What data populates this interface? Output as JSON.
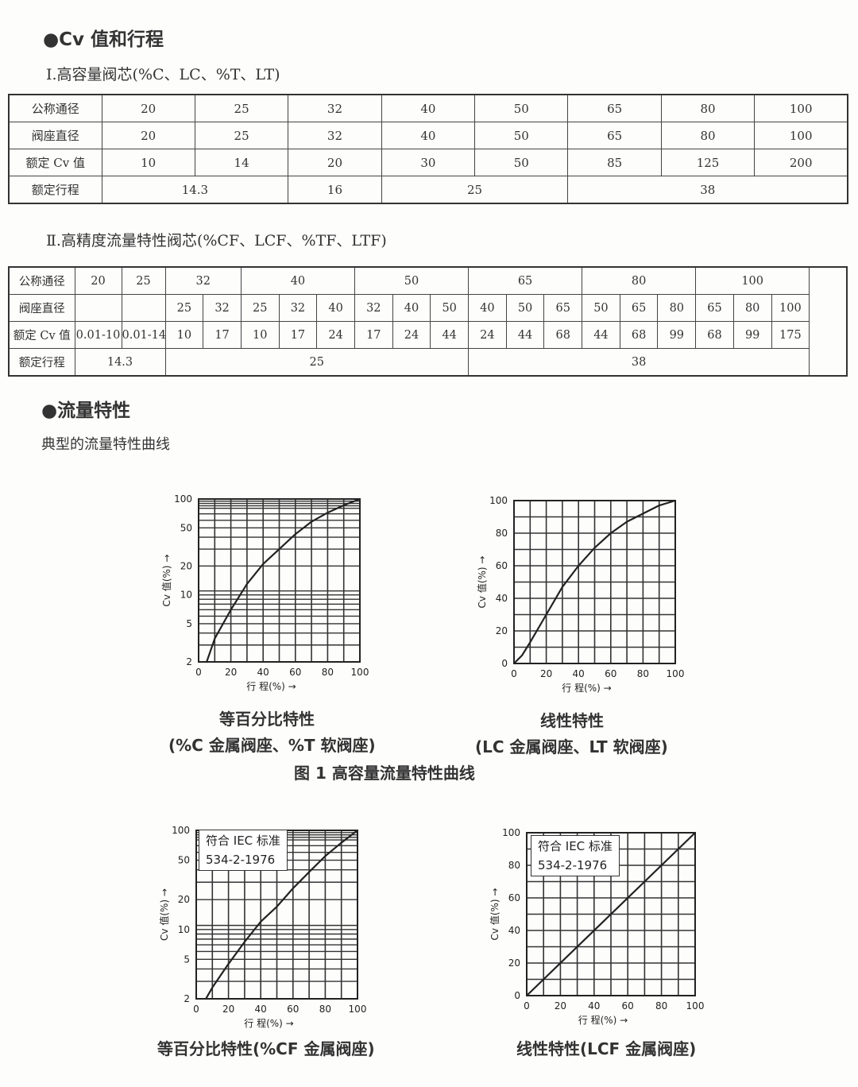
{
  "section1": {
    "title": "●Cv 值和行程"
  },
  "table1": {
    "title": "Ⅰ.高容量阀芯(%C、LC、%T、LT)",
    "rows": [
      {
        "label": "公称通径",
        "cells": [
          "20",
          "25",
          "32",
          "40",
          "50",
          "65",
          "80",
          "100"
        ]
      },
      {
        "label": "阀座直径",
        "cells": [
          "20",
          "25",
          "32",
          "40",
          "50",
          "65",
          "80",
          "100"
        ]
      },
      {
        "label": "额定 Cv 值",
        "cells": [
          "10",
          "14",
          "20",
          "30",
          "50",
          "85",
          "125",
          "200"
        ]
      },
      {
        "label": "额定行程",
        "cells": [
          "14.3",
          "16",
          "25",
          "38"
        ]
      }
    ]
  },
  "table2": {
    "title": "Ⅱ.高精度流量特性阀芯(%CF、LCF、%TF、LTF)",
    "rows": [
      {
        "label": "公称通径",
        "cells": [
          "20",
          "25",
          "32",
          "40",
          "50",
          "65",
          "80",
          "100"
        ]
      },
      {
        "label": "阀座直径",
        "cells": [
          "",
          "",
          "25",
          "32",
          "25",
          "32",
          "40",
          "32",
          "40",
          "50",
          "40",
          "50",
          "65",
          "50",
          "65",
          "80",
          "65",
          "80",
          "100"
        ]
      },
      {
        "label": "额定 Cv 值",
        "cells": [
          "0.01-10",
          "0.01-14",
          "10",
          "17",
          "10",
          "17",
          "24",
          "17",
          "24",
          "44",
          "24",
          "44",
          "68",
          "44",
          "68",
          "99",
          "68",
          "99",
          "175"
        ]
      },
      {
        "label": "额定行程",
        "cells": [
          "14.3",
          "25",
          "38"
        ]
      }
    ]
  },
  "section2": {
    "title": "●流量特性",
    "subtitle": "典型的流量特性曲线"
  },
  "figure1": {
    "caption": "图 1  高容量流量特性曲线"
  },
  "captions": {
    "c1a": "等百分比特性",
    "c1b": "(%C 金属阀座、%T 软阀座)",
    "c2a": "线性特性",
    "c2b": "(LC 金属阀座、LT 软阀座)",
    "c3": "等百分比特性(%CF 金属阀座)",
    "c4": "线性特性(LCF 金属阀座)"
  },
  "chart_data": [
    {
      "type": "line",
      "title": "等百分比特性",
      "xlabel": "行 程(%) →",
      "ylabel": "Cv 值(%) →",
      "yscale": "log",
      "xlim": [
        0,
        100
      ],
      "ylim": [
        2,
        100
      ],
      "xticks": [
        "0",
        "20",
        "40",
        "60",
        "80",
        "100"
      ],
      "yticks": [
        "2",
        "5",
        "10",
        "20",
        "50",
        "100"
      ],
      "grid": true,
      "x": [
        5,
        10,
        20,
        30,
        40,
        50,
        60,
        70,
        80,
        90,
        100
      ],
      "y": [
        2,
        3.5,
        7,
        13,
        21,
        30,
        43,
        58,
        72,
        86,
        100
      ]
    },
    {
      "type": "line",
      "title": "线性特性",
      "xlabel": "行 程(%) →",
      "ylabel": "Cv 值(%) →",
      "yscale": "linear",
      "xlim": [
        0,
        100
      ],
      "ylim": [
        0,
        100
      ],
      "xticks": [
        "0",
        "20",
        "40",
        "60",
        "80",
        "100"
      ],
      "yticks": [
        "0",
        "20",
        "40",
        "60",
        "80",
        "100"
      ],
      "grid": true,
      "x": [
        0,
        5,
        10,
        20,
        30,
        40,
        50,
        60,
        70,
        80,
        90,
        100
      ],
      "y": [
        0,
        5,
        13,
        30,
        47,
        60,
        71,
        80,
        87,
        92,
        97,
        100
      ]
    },
    {
      "type": "line",
      "title": "等百分比特性(%CF 金属阀座)",
      "annotation": [
        "符合 IEC 标准",
        "534-2-1976"
      ],
      "xlabel": "行 程(%) →",
      "ylabel": "Cv 值(%) →",
      "yscale": "log",
      "xlim": [
        0,
        100
      ],
      "ylim": [
        2,
        100
      ],
      "xticks": [
        "0",
        "20",
        "40",
        "60",
        "80",
        "100"
      ],
      "yticks": [
        "2",
        "5",
        "10",
        "20",
        "50",
        "100"
      ],
      "grid": true,
      "x": [
        6,
        10,
        20,
        30,
        40,
        50,
        60,
        70,
        80,
        90,
        100
      ],
      "y": [
        2,
        2.6,
        4.5,
        7.5,
        12,
        17,
        26,
        38,
        55,
        75,
        100
      ]
    },
    {
      "type": "line",
      "title": "线性特性(LCF 金属阀座)",
      "annotation": [
        "符合 IEC 标准",
        "534-2-1976"
      ],
      "xlabel": "行 程(%) →",
      "ylabel": "Cv 值(%) →",
      "yscale": "linear",
      "xlim": [
        0,
        100
      ],
      "ylim": [
        0,
        100
      ],
      "xticks": [
        "0",
        "20",
        "40",
        "60",
        "80",
        "100"
      ],
      "yticks": [
        "0",
        "20",
        "40",
        "60",
        "80",
        "100"
      ],
      "grid": true,
      "x": [
        0,
        100
      ],
      "y": [
        0,
        100
      ]
    }
  ]
}
